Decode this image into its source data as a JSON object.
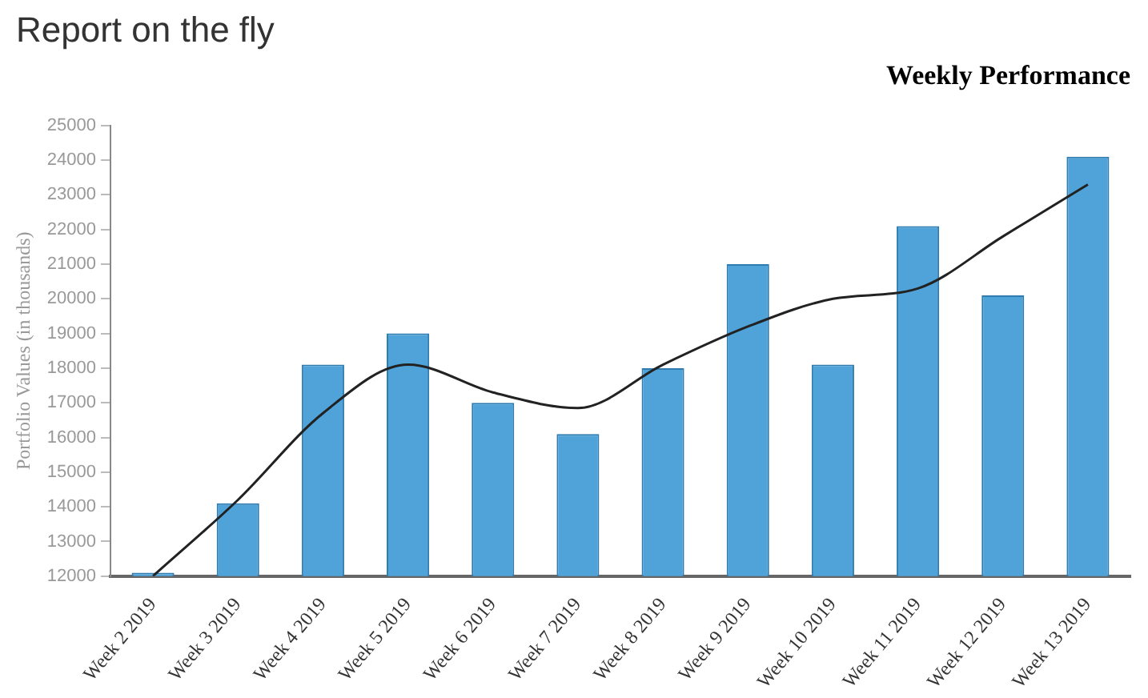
{
  "chart_data": {
    "type": "bar",
    "title": "Report on the fly",
    "subtitle": "Weekly Performance",
    "ylabel": "Portfolio Values (in thousands)",
    "categories": [
      "Week 2 2019",
      "Week 3 2019",
      "Week 4 2019",
      "Week 5 2019",
      "Week 6 2019",
      "Week 7 2019",
      "Week 8 2019",
      "Week 9 2019",
      "Week 10 2019",
      "Week 11 2019",
      "Week 12 2019",
      "Week 13 2019"
    ],
    "series": [
      {
        "color": "#4fa3d9",
        "values": [
          12100,
          14100,
          18100,
          19000,
          17000,
          16100,
          18000,
          21000,
          18100,
          22100,
          20100,
          24100
        ]
      },
      {
        "type": "line",
        "color": "#222222",
        "values": [
          12000,
          14200,
          16700,
          18100,
          17300,
          16850,
          18100,
          19200,
          20000,
          20300,
          21800,
          23300
        ]
      }
    ],
    "ylim": [
      12000,
      25000
    ],
    "yticks": [
      12000,
      13000,
      14000,
      15000,
      16000,
      17000,
      18000,
      19000,
      20000,
      21000,
      22000,
      23000,
      24000,
      25000
    ],
    "grid": false,
    "legend": false,
    "marker": "none",
    "line_style": "solid"
  }
}
